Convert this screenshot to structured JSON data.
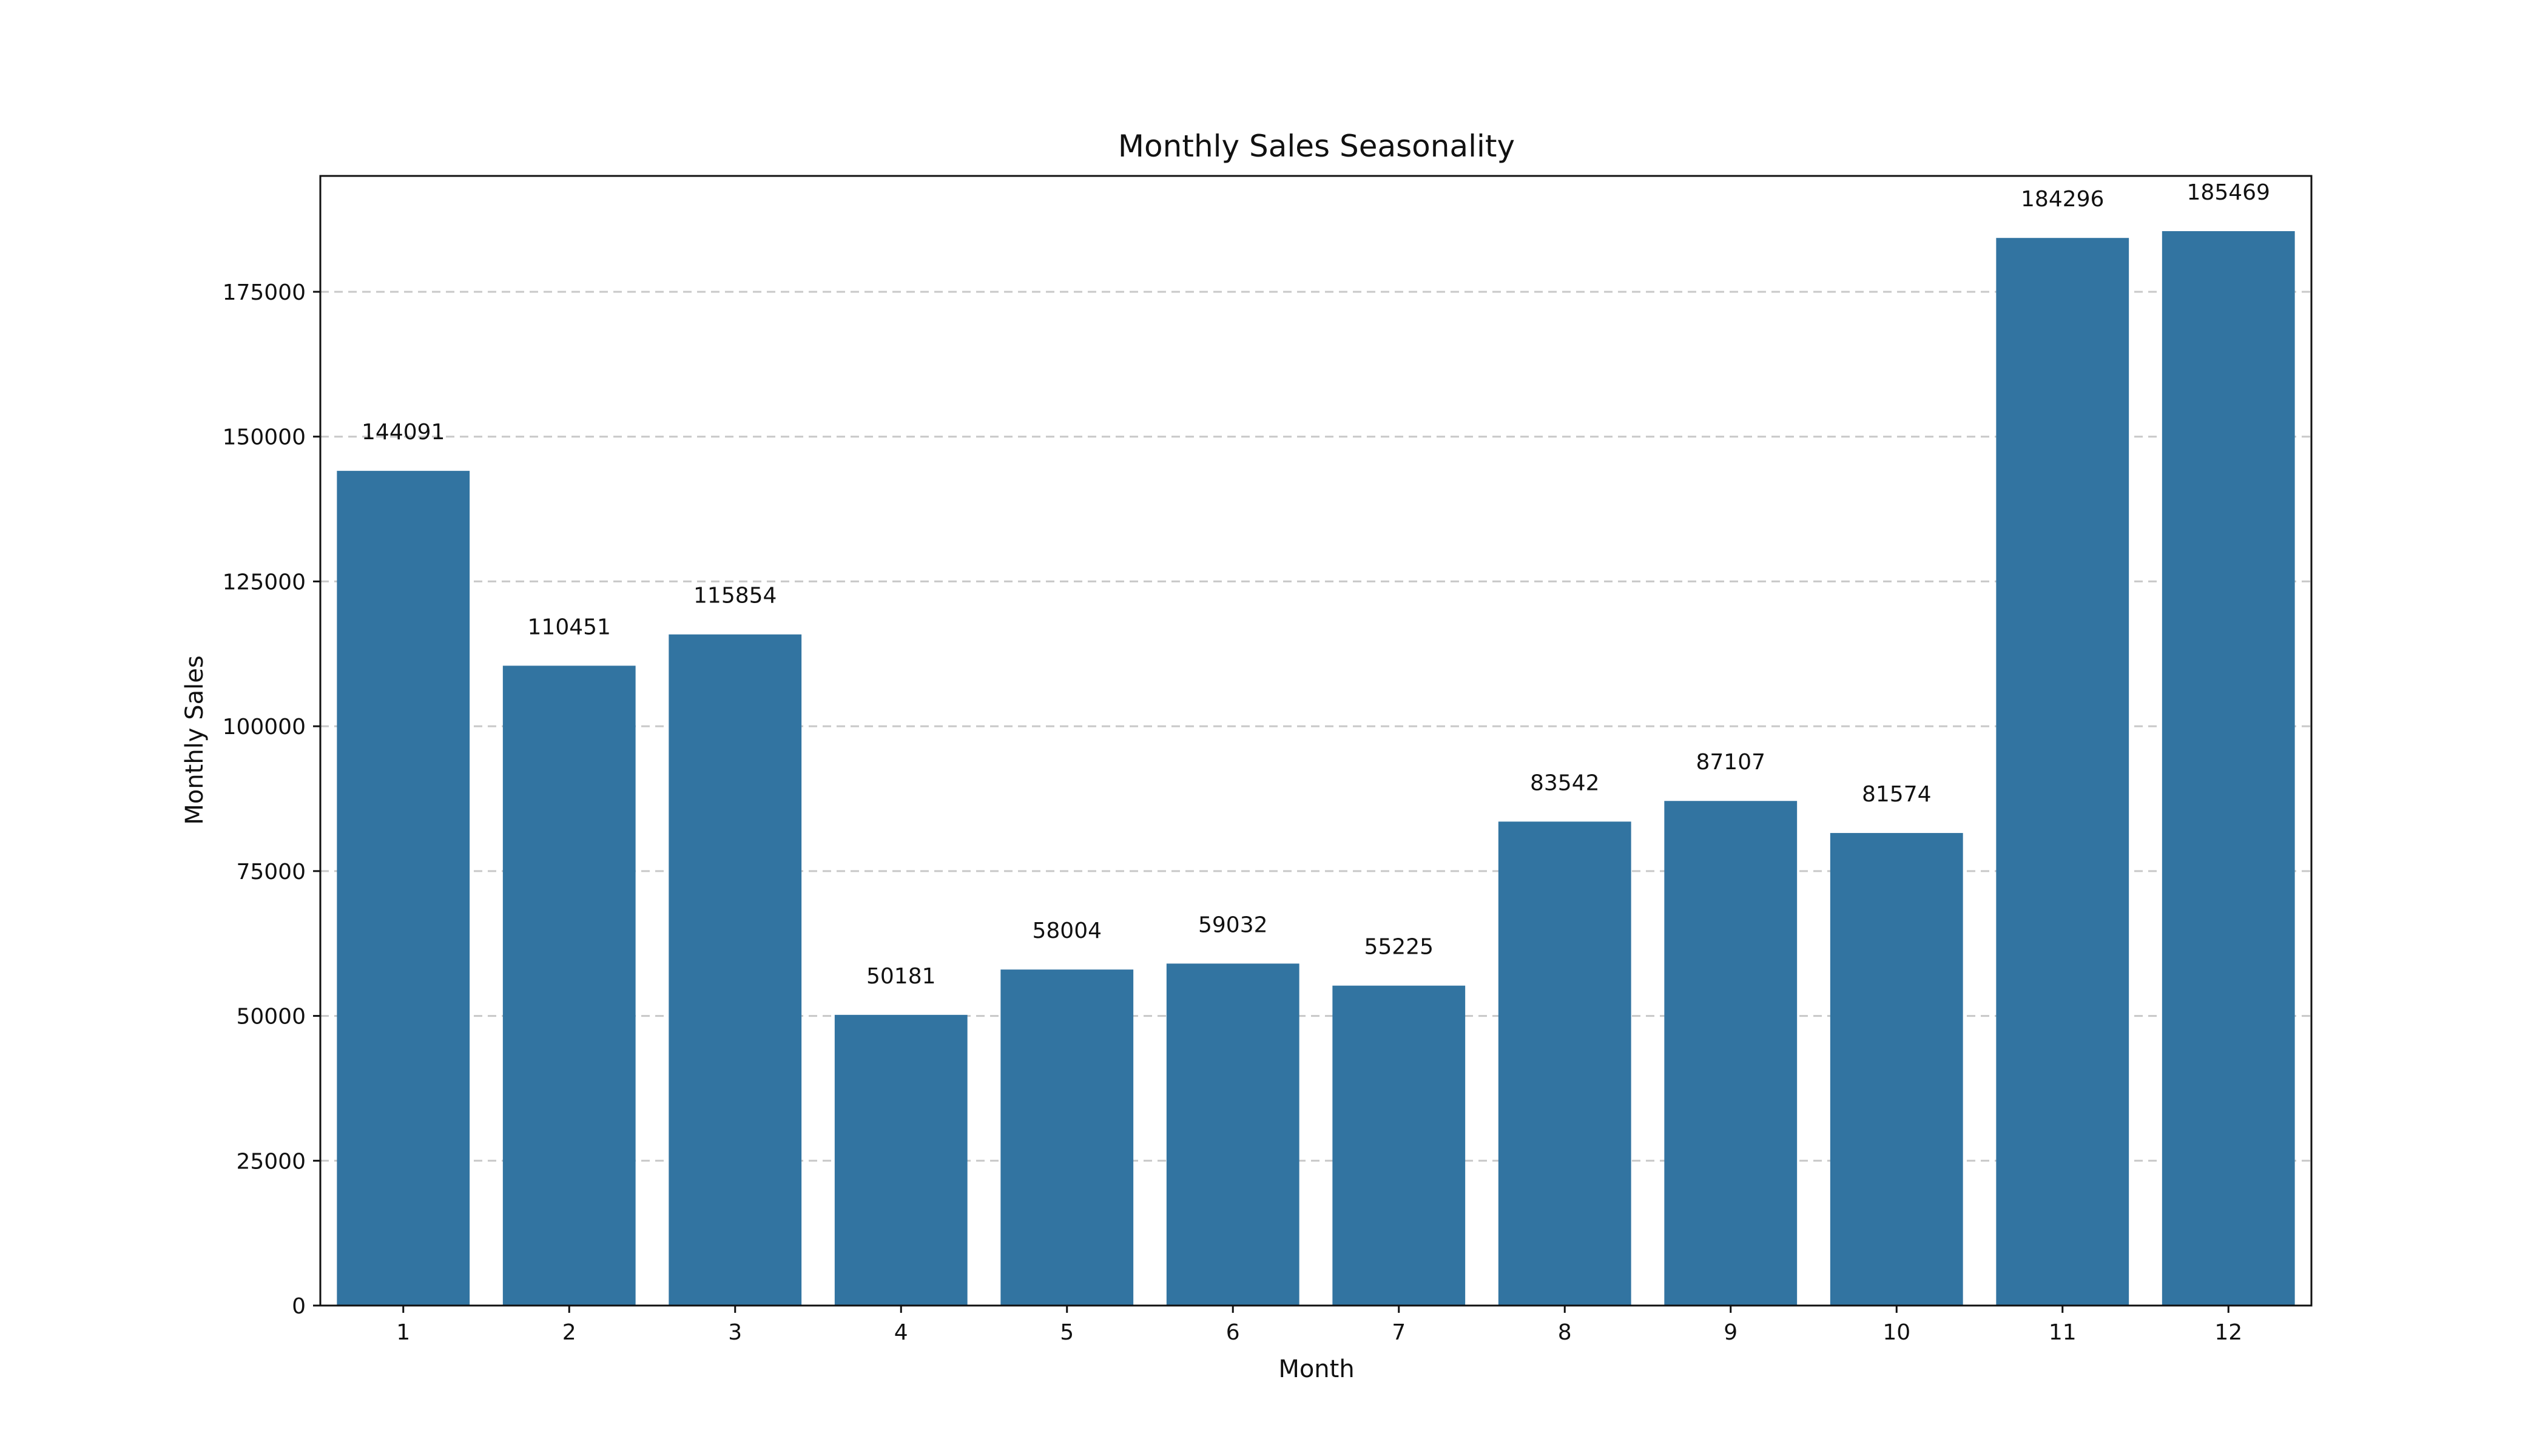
{
  "chart_data": {
    "type": "bar",
    "title": "Monthly Sales Seasonality",
    "xlabel": "Month",
    "ylabel": "Monthly Sales",
    "categories": [
      "1",
      "2",
      "3",
      "4",
      "5",
      "6",
      "7",
      "8",
      "9",
      "10",
      "11",
      "12"
    ],
    "values": [
      144091,
      110451,
      115854,
      50181,
      58004,
      59032,
      55225,
      83542,
      87107,
      81574,
      184296,
      185469
    ],
    "data_labels": [
      "144091",
      "110451",
      "115854",
      "50181",
      "58004",
      "59032",
      "55225",
      "83542",
      "87107",
      "81574",
      "184296",
      "185469"
    ],
    "ylim": [
      0,
      195000
    ],
    "yticks": [
      0,
      25000,
      50000,
      75000,
      100000,
      125000,
      150000,
      175000
    ],
    "ytick_labels": [
      "0",
      "25000",
      "50000",
      "75000",
      "100000",
      "125000",
      "150000",
      "175000"
    ],
    "grid": "y-dashed",
    "legend": "none",
    "colors": {
      "bar": "#3274a1",
      "grid": "#c8c8c8",
      "axis": "#111111"
    }
  }
}
